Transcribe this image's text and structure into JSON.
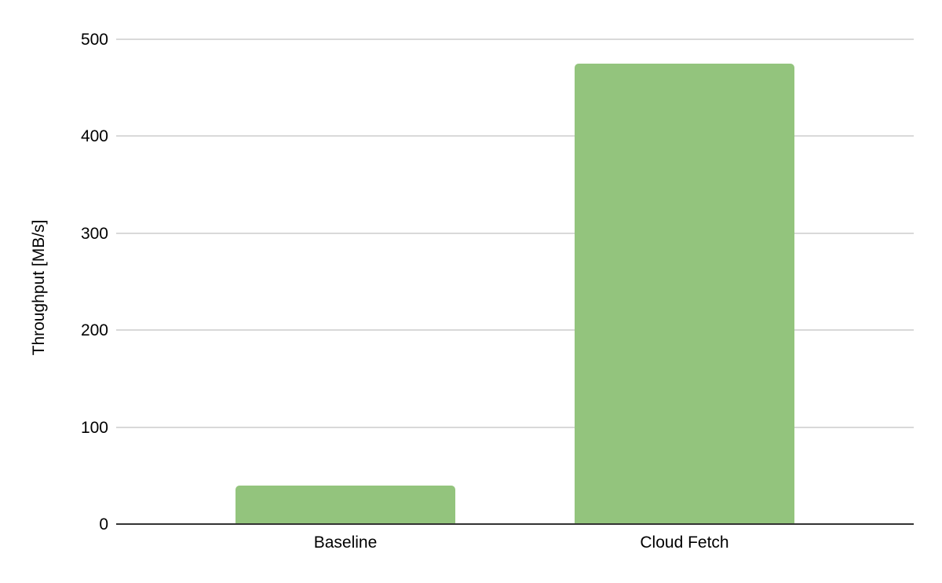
{
  "chart_data": {
    "type": "bar",
    "title": "",
    "categories": [
      "Baseline",
      "Cloud Fetch"
    ],
    "values": [
      39,
      474
    ],
    "series": [
      {
        "name": "Throughput",
        "values": [
          39,
          474
        ]
      }
    ],
    "xlabel": "",
    "ylabel": "Throughput [MB/s]",
    "ylim": [
      0,
      500
    ],
    "yticks": [
      0,
      100,
      200,
      300,
      400,
      500
    ],
    "grid": true,
    "legend": false,
    "bar_color": "#93c47d",
    "gridline_color": "#d9d9d9",
    "axis_line_color": "#333333",
    "text_color": "#000000",
    "background_color": "#ffffff"
  }
}
